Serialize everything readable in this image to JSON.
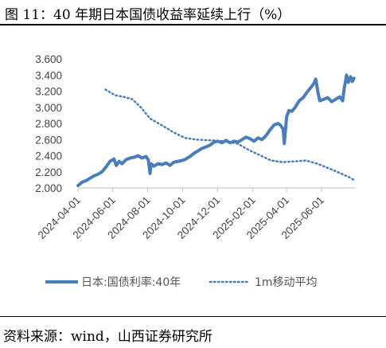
{
  "figure": {
    "title": "图 11：40 年期日本国债收益率延续上行（%）",
    "source": "资料来源：wind，山西证券研究所"
  },
  "colors": {
    "series": "#4a7ebb",
    "axis": "#bfbfbf",
    "text": "#444444"
  },
  "chart_data": {
    "type": "line",
    "title": "",
    "xlabel": "",
    "ylabel": "",
    "ylim": [
      2.0,
      3.6
    ],
    "y_ticks": [
      "3.600",
      "3.400",
      "3.200",
      "3.000",
      "2.800",
      "2.600",
      "2.400",
      "2.200",
      "2.000"
    ],
    "x_ticks": [
      "2024-04-01",
      "2024-06-01",
      "2024-08-01",
      "2024-10-01",
      "2024-12-01",
      "2025-02-01",
      "2025-04-01",
      "2025-06-01"
    ],
    "x_range": [
      "2024-04-01",
      "2025-07-31"
    ],
    "grid": false,
    "legend_position": "bottom",
    "series": [
      {
        "name": "日本:国债利率:40年",
        "style": "solid",
        "points": [
          [
            "2024-04-01",
            2.03
          ],
          [
            "2024-04-08",
            2.07
          ],
          [
            "2024-04-15",
            2.09
          ],
          [
            "2024-04-22",
            2.12
          ],
          [
            "2024-04-29",
            2.15
          ],
          [
            "2024-05-06",
            2.17
          ],
          [
            "2024-05-13",
            2.2
          ],
          [
            "2024-05-20",
            2.26
          ],
          [
            "2024-05-27",
            2.33
          ],
          [
            "2024-06-03",
            2.36
          ],
          [
            "2024-06-07",
            2.28
          ],
          [
            "2024-06-12",
            2.33
          ],
          [
            "2024-06-17",
            2.3
          ],
          [
            "2024-06-24",
            2.35
          ],
          [
            "2024-07-01",
            2.37
          ],
          [
            "2024-07-08",
            2.38
          ],
          [
            "2024-07-15",
            2.4
          ],
          [
            "2024-07-22",
            2.37
          ],
          [
            "2024-07-29",
            2.39
          ],
          [
            "2024-08-02",
            2.35
          ],
          [
            "2024-08-05",
            2.18
          ],
          [
            "2024-08-07",
            2.3
          ],
          [
            "2024-08-12",
            2.27
          ],
          [
            "2024-08-19",
            2.3
          ],
          [
            "2024-08-26",
            2.29
          ],
          [
            "2024-09-02",
            2.31
          ],
          [
            "2024-09-09",
            2.28
          ],
          [
            "2024-09-16",
            2.32
          ],
          [
            "2024-09-23",
            2.33
          ],
          [
            "2024-09-30",
            2.34
          ],
          [
            "2024-10-07",
            2.36
          ],
          [
            "2024-10-14",
            2.39
          ],
          [
            "2024-10-21",
            2.43
          ],
          [
            "2024-10-28",
            2.46
          ],
          [
            "2024-11-04",
            2.49
          ],
          [
            "2024-11-11",
            2.51
          ],
          [
            "2024-11-18",
            2.53
          ],
          [
            "2024-11-25",
            2.57
          ],
          [
            "2024-12-02",
            2.58
          ],
          [
            "2024-12-09",
            2.56
          ],
          [
            "2024-12-16",
            2.59
          ],
          [
            "2024-12-23",
            2.56
          ],
          [
            "2024-12-30",
            2.58
          ],
          [
            "2025-01-06",
            2.57
          ],
          [
            "2025-01-13",
            2.6
          ],
          [
            "2025-01-20",
            2.63
          ],
          [
            "2025-01-27",
            2.61
          ],
          [
            "2025-02-03",
            2.58
          ],
          [
            "2025-02-10",
            2.62
          ],
          [
            "2025-02-17",
            2.6
          ],
          [
            "2025-02-24",
            2.65
          ],
          [
            "2025-03-03",
            2.72
          ],
          [
            "2025-03-10",
            2.78
          ],
          [
            "2025-03-17",
            2.8
          ],
          [
            "2025-03-21",
            2.78
          ],
          [
            "2025-03-26",
            2.73
          ],
          [
            "2025-03-28",
            2.55
          ],
          [
            "2025-04-01",
            2.88
          ],
          [
            "2025-04-05",
            2.96
          ],
          [
            "2025-04-10",
            2.95
          ],
          [
            "2025-04-16",
            3.0
          ],
          [
            "2025-04-23",
            3.08
          ],
          [
            "2025-04-30",
            3.12
          ],
          [
            "2025-05-07",
            3.19
          ],
          [
            "2025-05-14",
            3.25
          ],
          [
            "2025-05-19",
            3.3
          ],
          [
            "2025-05-22",
            3.35
          ],
          [
            "2025-05-26",
            3.18
          ],
          [
            "2025-05-29",
            3.08
          ],
          [
            "2025-06-05",
            3.1
          ],
          [
            "2025-06-12",
            3.12
          ],
          [
            "2025-06-19",
            3.07
          ],
          [
            "2025-06-26",
            3.1
          ],
          [
            "2025-07-03",
            3.13
          ],
          [
            "2025-07-08",
            3.08
          ],
          [
            "2025-07-11",
            3.24
          ],
          [
            "2025-07-15",
            3.4
          ],
          [
            "2025-07-18",
            3.31
          ],
          [
            "2025-07-22",
            3.38
          ],
          [
            "2025-07-25",
            3.32
          ],
          [
            "2025-07-28",
            3.36
          ]
        ]
      },
      {
        "name": "1m移动平均",
        "style": "dotted",
        "points": [
          [
            "2024-05-19",
            3.22
          ],
          [
            "2024-06-05",
            3.15
          ],
          [
            "2024-06-20",
            3.13
          ],
          [
            "2024-07-05",
            3.1
          ],
          [
            "2024-07-20",
            3.0
          ],
          [
            "2024-08-05",
            2.86
          ],
          [
            "2024-08-25",
            2.78
          ],
          [
            "2024-09-15",
            2.69
          ],
          [
            "2024-10-05",
            2.62
          ],
          [
            "2024-10-25",
            2.6
          ],
          [
            "2024-11-20",
            2.59
          ],
          [
            "2024-12-15",
            2.58
          ],
          [
            "2025-01-05",
            2.55
          ],
          [
            "2025-01-25",
            2.47
          ],
          [
            "2025-02-15",
            2.4
          ],
          [
            "2025-03-05",
            2.34
          ],
          [
            "2025-03-25",
            2.32
          ],
          [
            "2025-04-15",
            2.33
          ],
          [
            "2025-05-05",
            2.34
          ],
          [
            "2025-05-25",
            2.3
          ],
          [
            "2025-06-15",
            2.24
          ],
          [
            "2025-07-05",
            2.18
          ],
          [
            "2025-07-20",
            2.13
          ],
          [
            "2025-07-30",
            2.09
          ]
        ]
      }
    ]
  }
}
